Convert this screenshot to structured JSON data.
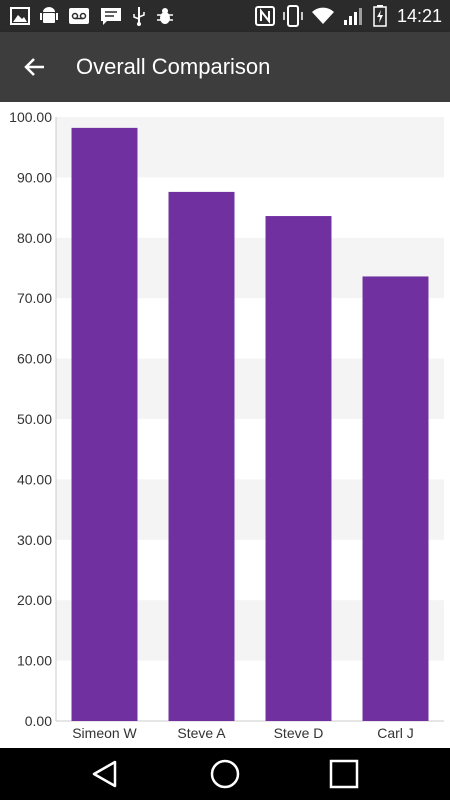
{
  "status_bar": {
    "time": "14:21",
    "left_icons": [
      "image-icon",
      "android-icon",
      "voicemail-icon",
      "message-icon",
      "usb-icon",
      "bug-icon"
    ],
    "right_icons": [
      "nfc-icon",
      "vibrate-icon",
      "wifi-icon",
      "signal-icon",
      "battery-charging-icon"
    ]
  },
  "app_bar": {
    "title": "Overall Comparison",
    "back_icon": "arrow-back-icon"
  },
  "chart_data": {
    "type": "bar",
    "categories": [
      "Simeon W",
      "Steve A",
      "Steve D",
      "Carl J"
    ],
    "values": [
      98.2,
      87.6,
      83.6,
      73.6
    ],
    "ylim": [
      0,
      100
    ],
    "yticks": [
      "0.00",
      "10.00",
      "20.00",
      "30.00",
      "40.00",
      "50.00",
      "60.00",
      "70.00",
      "80.00",
      "90.00",
      "100.00"
    ],
    "title": "",
    "xlabel": "",
    "ylabel": "",
    "bar_color": "#7030a0",
    "band_color": "#f4f4f4",
    "grid": "alternating horizontal bands"
  },
  "nav_bar": {
    "back_icon": "nav-back-icon",
    "home_icon": "nav-home-icon",
    "recents_icon": "nav-recents-icon"
  }
}
